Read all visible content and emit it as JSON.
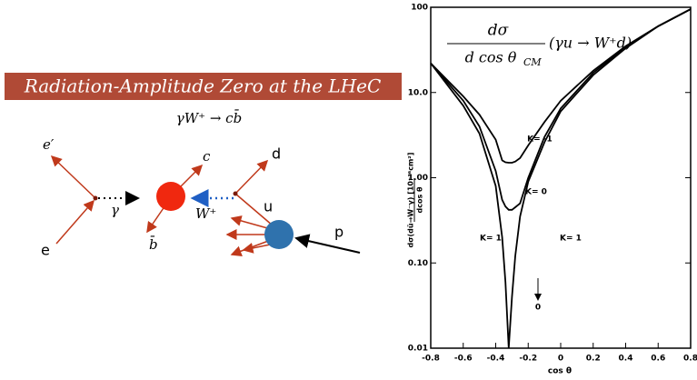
{
  "diagram": {
    "title": "Radiation-Amplitude Zero at the LHeC",
    "process": "γW⁺ → cb̄",
    "labels": {
      "e_prime": "e′",
      "e": "e",
      "gamma": "γ",
      "c": "c",
      "b_bar": "b̄",
      "w_plus": "W⁺",
      "d": "d",
      "u": "u",
      "p": "p"
    }
  },
  "chart_data": {
    "type": "line",
    "title": {
      "numerator": "dσ",
      "denominator": "d cos θ",
      "denominator_sub": "CM",
      "suffix": "(γu → W⁺d)"
    },
    "xlabel": "cos θ",
    "ylabel": "dσ(dū→W⁻γ) [10⁻³⁶cm²]",
    "ylabel_denominator": "dcos θ",
    "x": [
      -0.8,
      -0.6,
      -0.5,
      -0.4,
      -0.36,
      -0.34,
      -0.32,
      -0.3,
      -0.28,
      -0.25,
      -0.2,
      -0.1,
      0,
      0.2,
      0.4,
      0.6,
      0.8
    ],
    "series": [
      {
        "name": "K= -1",
        "color": "#000000",
        "values": [
          22,
          9,
          5.5,
          2.8,
          1.6,
          1.52,
          1.5,
          1.5,
          1.55,
          1.7,
          2.4,
          4.5,
          8,
          18,
          35,
          60,
          95
        ]
      },
      {
        "name": "K= 0",
        "color": "#000000",
        "values": [
          22,
          8,
          4,
          1.2,
          0.55,
          0.46,
          0.42,
          0.42,
          0.45,
          0.5,
          1.0,
          3,
          6.5,
          17,
          34,
          60,
          95
        ]
      },
      {
        "name": "K= 1",
        "color": "#000000",
        "values": [
          22,
          7,
          3.3,
          0.8,
          0.2,
          0.06,
          0.01,
          0.04,
          0.12,
          0.35,
          0.9,
          2.6,
          6,
          16,
          33,
          60,
          95
        ]
      }
    ],
    "annotations": [
      "K= 1",
      "0"
    ],
    "xlim": [
      -0.8,
      0.8
    ],
    "ylim": [
      0.01,
      100
    ],
    "xticks": [
      -0.8,
      -0.6,
      -0.4,
      -0.2,
      0,
      0.2,
      0.4,
      0.6,
      0.8
    ],
    "yticks": [
      0.01,
      {
        "value": 0.1,
        "label": "0.10"
      },
      {
        "value": 1,
        "label": "1.00"
      },
      {
        "value": 10,
        "label": "10.0"
      },
      100
    ],
    "log_y": true
  }
}
